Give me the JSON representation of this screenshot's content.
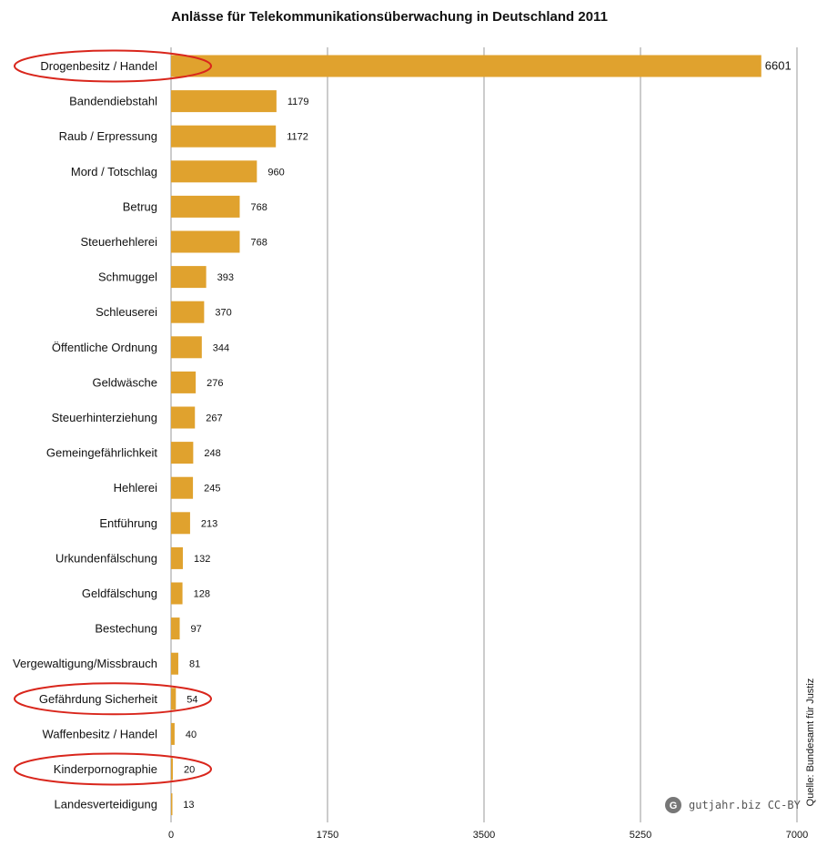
{
  "chart_data": {
    "type": "bar",
    "orientation": "horizontal",
    "title": "Anlässe für Telekommunikationsüberwachung in Deutschland 2011",
    "categories": [
      "Drogenbesitz / Handel",
      "Bandendiebstahl",
      "Raub / Erpressung",
      "Mord / Totschlag",
      "Betrug",
      "Steuerhehlerei",
      "Schmuggel",
      "Schleuserei",
      "Öffentliche Ordnung",
      "Geldwäsche",
      "Steuerhinterziehung",
      "Gemeingefährlichkeit",
      "Hehlerei",
      "Entführung",
      "Urkundenfälschung",
      "Geldfälschung",
      "Bestechung",
      "Vergewaltigung/Missbrauch",
      "Gefährdung Sicherheit",
      "Waffenbesitz / Handel",
      "Kinderpornographie",
      "Landesverteidigung"
    ],
    "values": [
      6601,
      1179,
      1172,
      960,
      768,
      768,
      393,
      370,
      344,
      276,
      267,
      248,
      245,
      213,
      132,
      128,
      97,
      81,
      54,
      40,
      20,
      13
    ],
    "value_labels": [
      "6601",
      "1179",
      "1172",
      "960",
      "768",
      "768",
      "393",
      "370",
      "344",
      "276",
      "267",
      "248",
      "245",
      "213",
      "132",
      "128",
      "97",
      "81",
      "54",
      "40",
      "20",
      "13"
    ],
    "xlim": [
      0,
      7000
    ],
    "xticks": [
      "0",
      "1750",
      "3500",
      "5250",
      "7000"
    ],
    "xtick_values": [
      0,
      1750,
      3500,
      5250,
      7000
    ],
    "grid": "vertical",
    "highlighted_categories": [
      "Drogenbesitz / Handel",
      "Gefährdung Sicherheit",
      "Kinderpornographie"
    ],
    "source_note": "Quelle: Bundesamt für Justiz",
    "watermark": "gutjahr.biz CC-BY",
    "colors": {
      "bar": "#e0a22e",
      "grid": "#999999",
      "highlight_ellipse": "#d9261c"
    }
  }
}
